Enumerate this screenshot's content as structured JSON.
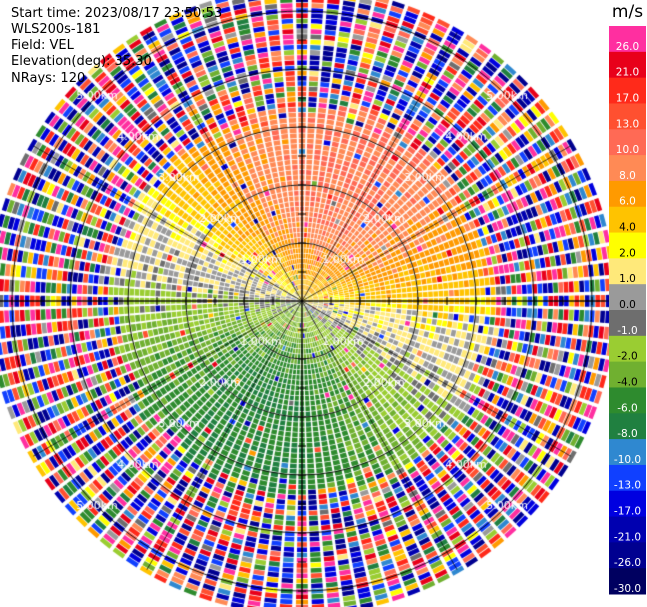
{
  "header": {
    "start_time": "Start time: 2023/08/17 23:50:53",
    "instrument": "WLS200s-181",
    "field": "Field: VEL",
    "elevation": "Elevation(deg): 35.30",
    "nrays": "NRays: 120"
  },
  "colorbar": {
    "unit": "m/s",
    "ticks": [
      "26.0",
      "21.0",
      "17.0",
      "13.0",
      "10.0",
      "8.0",
      "6.0",
      "4.0",
      "2.0",
      "1.0",
      "0.0",
      "-1.0",
      "-2.0",
      "-4.0",
      "-6.0",
      "-8.0",
      "-10.0",
      "-13.0",
      "-17.0",
      "-21.0",
      "-26.0",
      "-30.0"
    ],
    "colors": [
      "#ff2fa0",
      "#e8001a",
      "#ff2a1a",
      "#ff5030",
      "#ff6a55",
      "#ff8a55",
      "#ff9a00",
      "#ffc300",
      "#ffff00",
      "#ffe97a",
      "#9a9a9a",
      "#6e6e6e",
      "#9acd32",
      "#70b030",
      "#2e8b2e",
      "#208040",
      "#2f88d0",
      "#1040ff",
      "#0000e0",
      "#0000b0",
      "#000090",
      "#000060"
    ]
  },
  "chart_data": {
    "type": "ppi",
    "field": "VEL",
    "units": "m/s",
    "nrays": 120,
    "elevation_deg": 35.3,
    "range_rings_km": [
      1.0,
      2.0,
      3.0,
      4.0,
      5.0
    ],
    "ring_label": "km",
    "ring_label_values": [
      "1.00",
      "2.00",
      "3.00",
      "4.00",
      "5.00"
    ],
    "max_range_km": 5.35,
    "gate_km": 0.09,
    "azimuth_lines_deg": [
      0,
      30,
      60,
      90,
      120,
      150,
      180,
      210,
      240,
      270,
      300,
      330
    ],
    "pattern": {
      "positive_sector_center_deg": 20,
      "negative_sector_center_deg": 180,
      "peak_speed": 8,
      "coherent_range_km": 3.1,
      "noise_start_km": 3.3
    }
  }
}
